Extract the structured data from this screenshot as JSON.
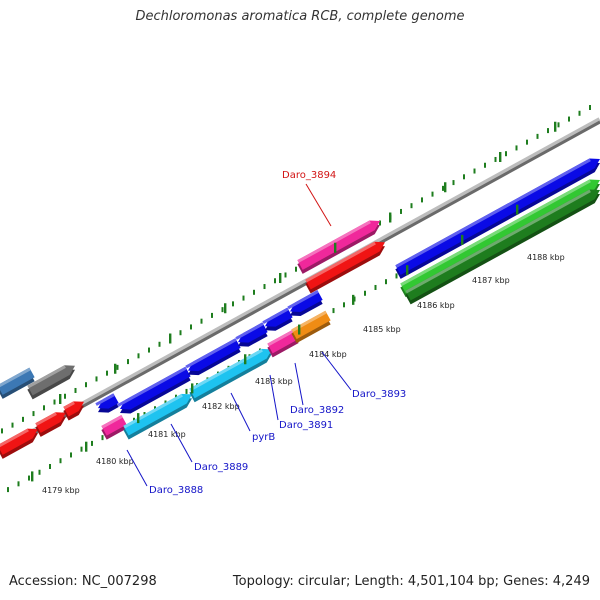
{
  "title": "Dechloromonas aromatica RCB, complete genome",
  "footer": {
    "accession": "Accession: NC_007298",
    "topology": "Topology: circular; Length: 4,501,104 bp; Genes: 4,249"
  },
  "colors": {
    "blue": "#0a0ae6",
    "cyan": "#1ec3f0",
    "magenta": "#f0289b",
    "red": "#f01414",
    "orange": "#f08c14",
    "green": "#32c832",
    "darkgreen": "#1e7d1e",
    "gray": "#6e6e6e",
    "steelblue": "#3c78b4",
    "label_blue": "#1414c8",
    "label_red": "#d21414",
    "tick": "#1e7d1e"
  },
  "ticks": [
    {
      "label": "4179 kbp"
    },
    {
      "label": "4180 kbp"
    },
    {
      "label": "4181 kbp"
    },
    {
      "label": "4182 kbp"
    },
    {
      "label": "4183 kbp"
    },
    {
      "label": "4184 kbp"
    },
    {
      "label": "4185 kbp"
    },
    {
      "label": "4186 kbp"
    },
    {
      "label": "4187 kbp"
    },
    {
      "label": "4188 kbp"
    }
  ],
  "gene_labels": [
    {
      "name": "Daro_3894",
      "color": "label_red"
    },
    {
      "name": "Daro_3893",
      "color": "label_blue"
    },
    {
      "name": "Daro_3892",
      "color": "label_blue"
    },
    {
      "name": "Daro_3891",
      "color": "label_blue"
    },
    {
      "name": "pyrB",
      "color": "label_blue"
    },
    {
      "name": "Daro_3889",
      "color": "label_blue"
    },
    {
      "name": "Daro_3888",
      "color": "label_blue"
    }
  ]
}
